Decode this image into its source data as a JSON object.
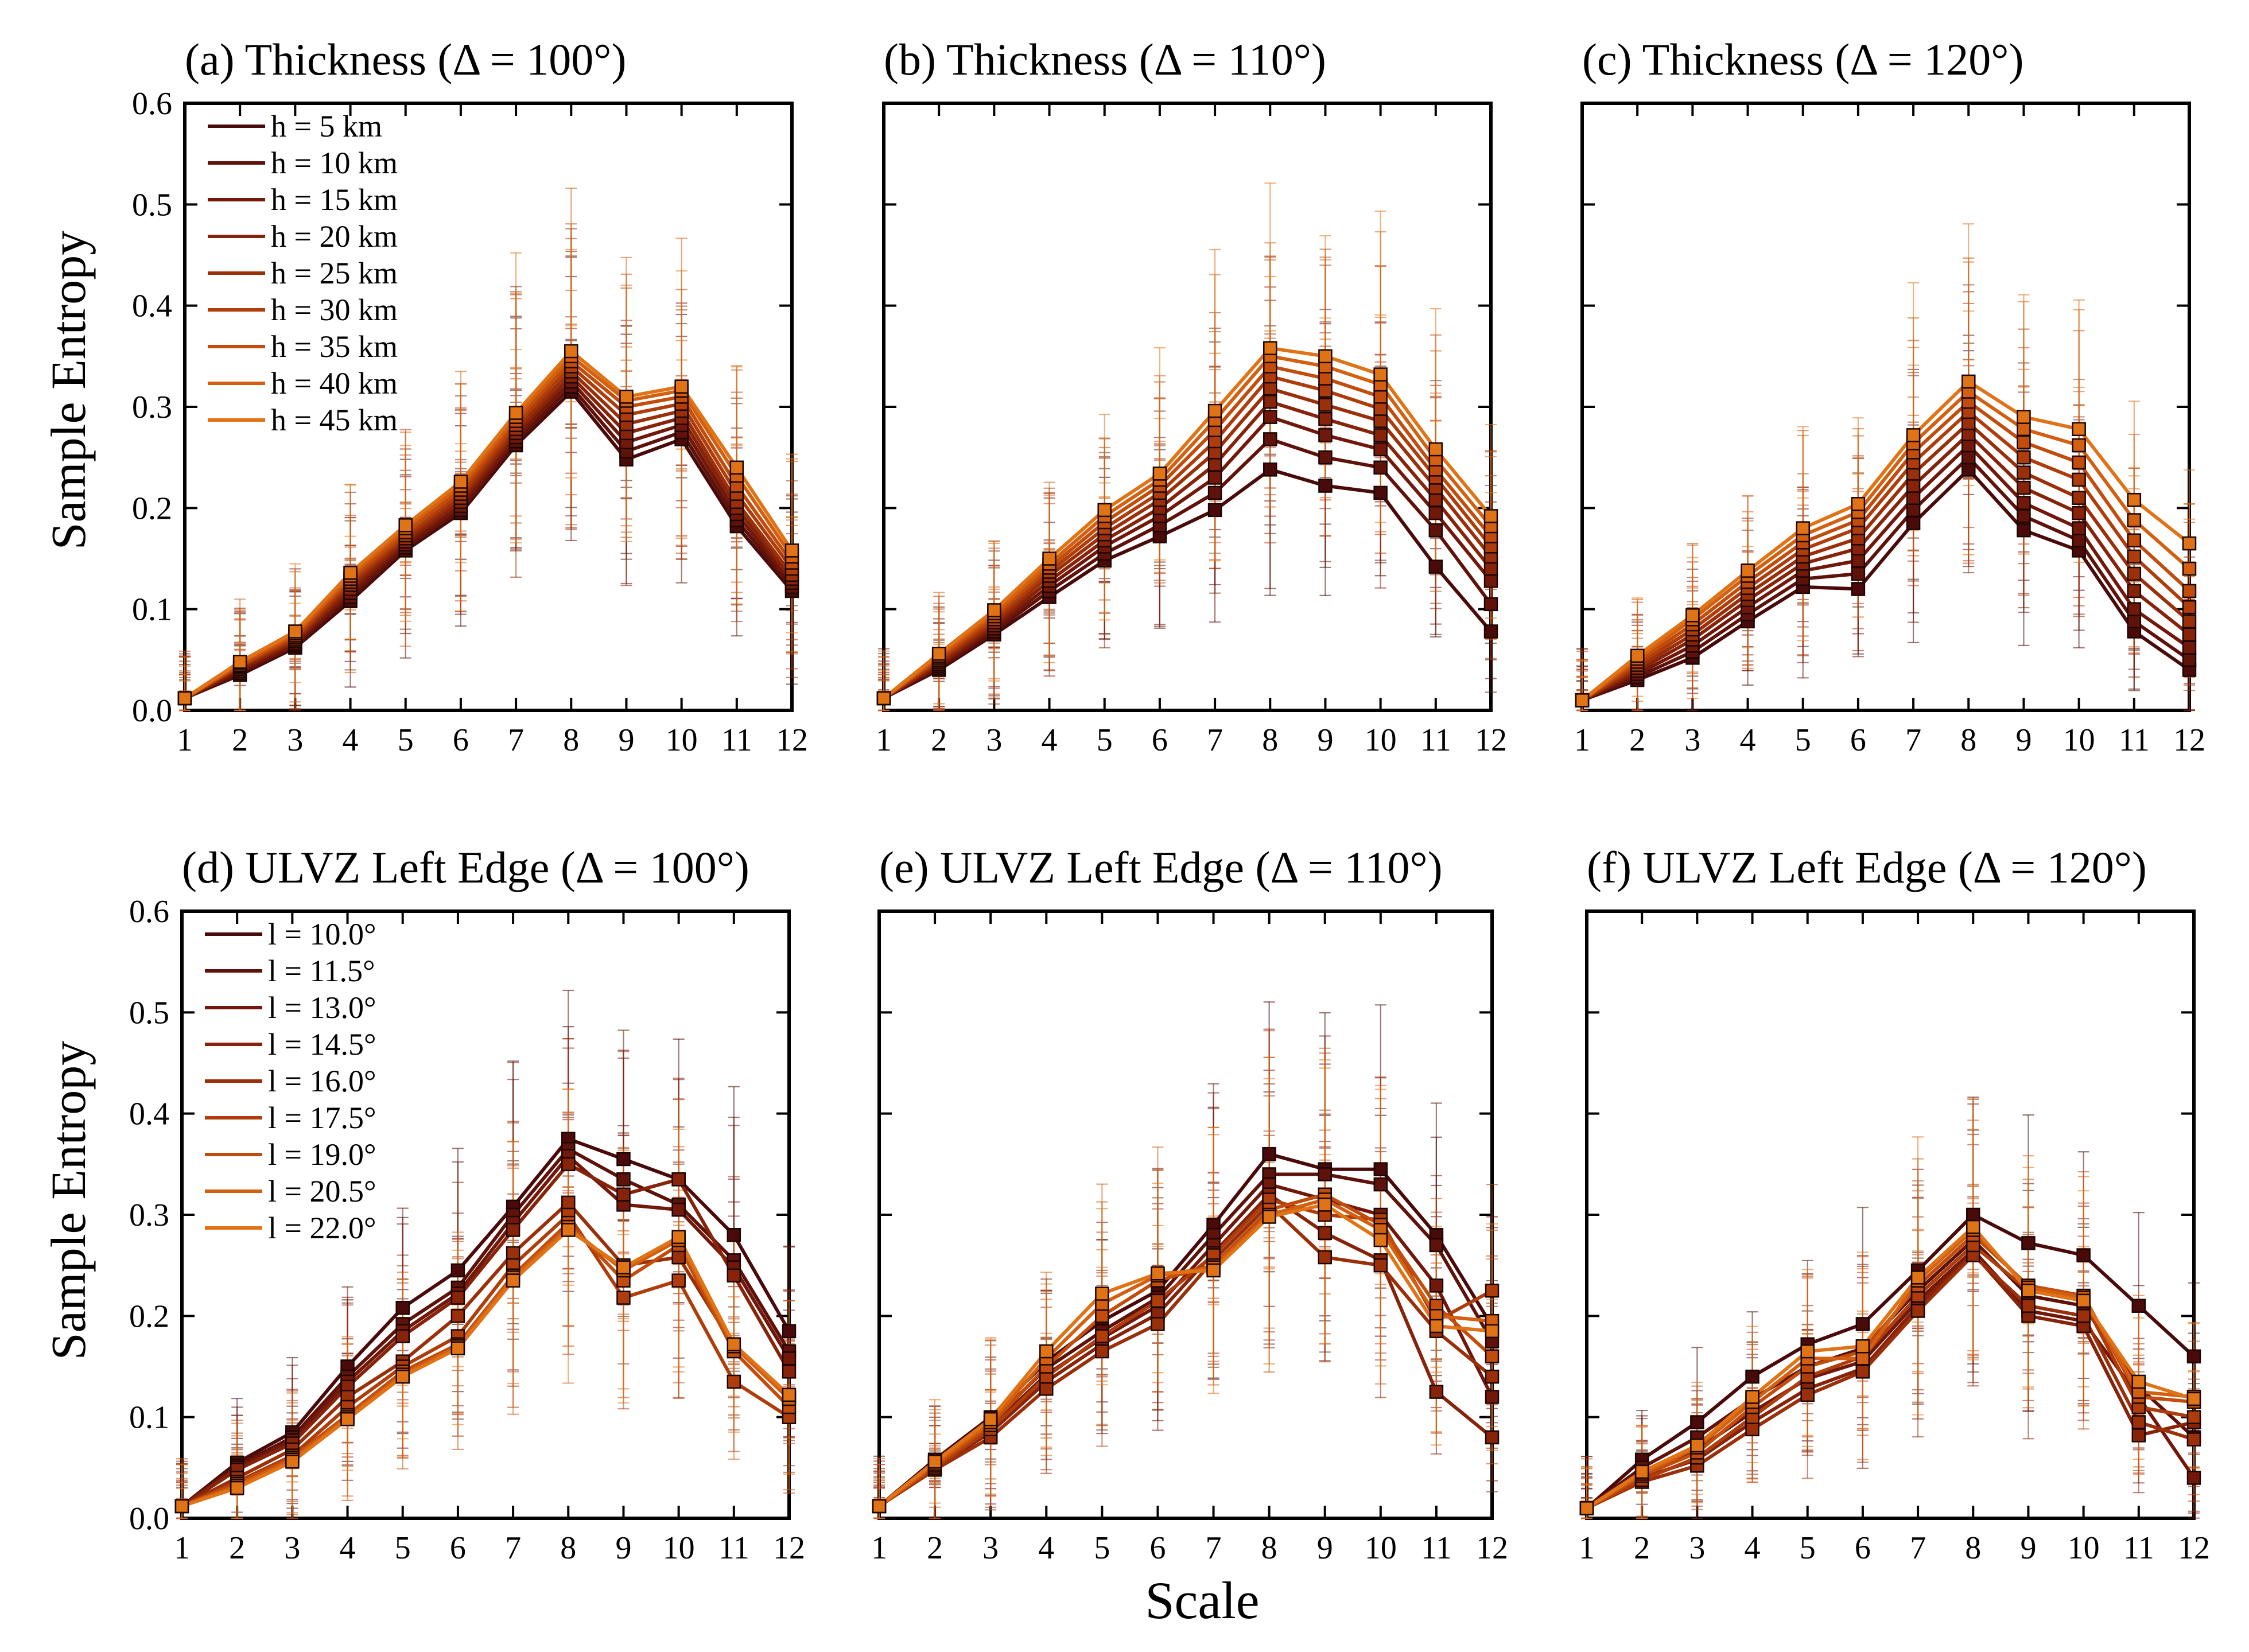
{
  "figure": {
    "ylabel": "Sample Entropy",
    "xlabel": "Scale"
  },
  "chart_data": [
    {
      "type": "line",
      "title": "(a) Thickness (Δ = 100°)",
      "x": [
        1,
        2,
        3,
        4,
        5,
        6,
        7,
        8,
        9,
        10,
        11,
        12
      ],
      "ylim": [
        0,
        0.6
      ],
      "yticks": [
        "0.0",
        "0.1",
        "0.2",
        "0.3",
        "0.4",
        "0.5",
        "0.6"
      ],
      "legend_position": "top-left",
      "series": [
        {
          "name": "h = 5 km",
          "color": "#4a0a0a",
          "values": [
            0.012,
            0.035,
            0.062,
            0.108,
            0.158,
            0.195,
            0.262,
            0.315,
            0.248,
            0.268,
            0.182,
            0.118
          ]
        },
        {
          "name": "h = 10 km",
          "color": "#5e1209",
          "values": [
            0.012,
            0.037,
            0.064,
            0.112,
            0.161,
            0.198,
            0.266,
            0.32,
            0.256,
            0.275,
            0.188,
            0.122
          ]
        },
        {
          "name": "h = 15 km",
          "color": "#72180b",
          "values": [
            0.012,
            0.039,
            0.066,
            0.116,
            0.164,
            0.202,
            0.27,
            0.325,
            0.265,
            0.282,
            0.194,
            0.126
          ]
        },
        {
          "name": "h = 20 km",
          "color": "#862309",
          "values": [
            0.012,
            0.041,
            0.068,
            0.12,
            0.167,
            0.206,
            0.274,
            0.33,
            0.274,
            0.289,
            0.2,
            0.13
          ]
        },
        {
          "name": "h = 25 km",
          "color": "#9a300a",
          "values": [
            0.012,
            0.043,
            0.07,
            0.124,
            0.17,
            0.21,
            0.278,
            0.335,
            0.283,
            0.296,
            0.206,
            0.134
          ]
        },
        {
          "name": "h = 30 km",
          "color": "#ae3d0b",
          "values": [
            0.012,
            0.044,
            0.072,
            0.127,
            0.173,
            0.214,
            0.282,
            0.34,
            0.292,
            0.303,
            0.214,
            0.14
          ]
        },
        {
          "name": "h = 35 km",
          "color": "#c24c0c",
          "values": [
            0.012,
            0.045,
            0.074,
            0.13,
            0.176,
            0.218,
            0.286,
            0.345,
            0.3,
            0.31,
            0.222,
            0.146
          ]
        },
        {
          "name": "h = 40 km",
          "color": "#d35f10",
          "values": [
            0.012,
            0.047,
            0.076,
            0.133,
            0.18,
            0.222,
            0.29,
            0.35,
            0.306,
            0.316,
            0.232,
            0.152
          ]
        },
        {
          "name": "h = 45 km",
          "color": "#e07316",
          "values": [
            0.012,
            0.048,
            0.078,
            0.136,
            0.183,
            0.226,
            0.294,
            0.355,
            0.31,
            0.32,
            0.24,
            0.158
          ]
        }
      ]
    },
    {
      "type": "line",
      "title": "(b) Thickness (Δ = 110°)",
      "x": [
        1,
        2,
        3,
        4,
        5,
        6,
        7,
        8,
        9,
        10,
        11,
        12
      ],
      "ylim": [
        0,
        0.6
      ],
      "yticks": [],
      "series": [
        {
          "color": "#4a0a0a",
          "values": [
            0.012,
            0.04,
            0.075,
            0.112,
            0.148,
            0.172,
            0.198,
            0.238,
            0.222,
            0.215,
            0.142,
            0.078
          ]
        },
        {
          "color": "#5e1209",
          "values": [
            0.012,
            0.042,
            0.078,
            0.118,
            0.155,
            0.183,
            0.215,
            0.268,
            0.25,
            0.24,
            0.178,
            0.105
          ]
        },
        {
          "color": "#72180b",
          "values": [
            0.012,
            0.044,
            0.081,
            0.123,
            0.162,
            0.192,
            0.23,
            0.29,
            0.272,
            0.258,
            0.195,
            0.128
          ]
        },
        {
          "color": "#862309",
          "values": [
            0.012,
            0.046,
            0.084,
            0.128,
            0.168,
            0.2,
            0.243,
            0.305,
            0.288,
            0.272,
            0.208,
            0.14
          ]
        },
        {
          "color": "#9a300a",
          "values": [
            0.012,
            0.048,
            0.087,
            0.133,
            0.174,
            0.208,
            0.255,
            0.318,
            0.302,
            0.286,
            0.22,
            0.152
          ]
        },
        {
          "color": "#ae3d0b",
          "values": [
            0.012,
            0.05,
            0.09,
            0.137,
            0.18,
            0.215,
            0.266,
            0.33,
            0.316,
            0.298,
            0.23,
            0.162
          ]
        },
        {
          "color": "#c24c0c",
          "values": [
            0.012,
            0.052,
            0.093,
            0.141,
            0.186,
            0.222,
            0.277,
            0.34,
            0.328,
            0.31,
            0.238,
            0.172
          ]
        },
        {
          "color": "#d35f10",
          "values": [
            0.012,
            0.054,
            0.096,
            0.145,
            0.192,
            0.228,
            0.287,
            0.35,
            0.34,
            0.322,
            0.248,
            0.182
          ]
        },
        {
          "color": "#e07316",
          "values": [
            0.012,
            0.056,
            0.099,
            0.15,
            0.198,
            0.234,
            0.296,
            0.358,
            0.35,
            0.332,
            0.258,
            0.192
          ]
        }
      ]
    },
    {
      "type": "line",
      "title": "(c) Thickness (Δ = 120°)",
      "x": [
        1,
        2,
        3,
        4,
        5,
        6,
        7,
        8,
        9,
        10,
        11,
        12
      ],
      "ylim": [
        0,
        0.6
      ],
      "yticks": [],
      "series": [
        {
          "color": "#4a0a0a",
          "values": [
            0.01,
            0.03,
            0.052,
            0.088,
            0.122,
            0.12,
            0.185,
            0.238,
            0.178,
            0.158,
            0.078,
            0.04
          ]
        },
        {
          "color": "#5e1209",
          "values": [
            0.01,
            0.033,
            0.058,
            0.095,
            0.13,
            0.135,
            0.198,
            0.25,
            0.192,
            0.168,
            0.088,
            0.05
          ]
        },
        {
          "color": "#72180b",
          "values": [
            0.01,
            0.036,
            0.064,
            0.102,
            0.138,
            0.148,
            0.21,
            0.262,
            0.205,
            0.18,
            0.1,
            0.062
          ]
        },
        {
          "color": "#862309",
          "values": [
            0.01,
            0.039,
            0.07,
            0.109,
            0.145,
            0.16,
            0.222,
            0.273,
            0.22,
            0.195,
            0.118,
            0.075
          ]
        },
        {
          "color": "#9a300a",
          "values": [
            0.01,
            0.042,
            0.075,
            0.115,
            0.152,
            0.17,
            0.234,
            0.284,
            0.235,
            0.21,
            0.135,
            0.088
          ]
        },
        {
          "color": "#ae3d0b",
          "values": [
            0.01,
            0.045,
            0.08,
            0.121,
            0.159,
            0.18,
            0.245,
            0.295,
            0.25,
            0.228,
            0.152,
            0.102
          ]
        },
        {
          "color": "#c24c0c",
          "values": [
            0.01,
            0.048,
            0.085,
            0.127,
            0.166,
            0.188,
            0.255,
            0.305,
            0.265,
            0.245,
            0.168,
            0.118
          ]
        },
        {
          "color": "#d35f10",
          "values": [
            0.01,
            0.051,
            0.09,
            0.133,
            0.173,
            0.196,
            0.264,
            0.315,
            0.278,
            0.262,
            0.188,
            0.14
          ]
        },
        {
          "color": "#e07316",
          "values": [
            0.01,
            0.054,
            0.094,
            0.138,
            0.18,
            0.204,
            0.272,
            0.325,
            0.29,
            0.278,
            0.208,
            0.165
          ]
        }
      ]
    },
    {
      "type": "line",
      "title": "(d) ULVZ Left Edge (Δ = 100°)",
      "x": [
        1,
        2,
        3,
        4,
        5,
        6,
        7,
        8,
        9,
        10,
        11,
        12
      ],
      "ylim": [
        0,
        0.6
      ],
      "yticks": [
        "0.0",
        "0.1",
        "0.2",
        "0.3",
        "0.4",
        "0.5",
        "0.6"
      ],
      "legend_position": "top-left",
      "series": [
        {
          "name": "l = 10.0°",
          "color": "#4a0a0a",
          "values": [
            0.012,
            0.055,
            0.085,
            0.15,
            0.208,
            0.245,
            0.308,
            0.375,
            0.355,
            0.335,
            0.28,
            0.185
          ]
        },
        {
          "name": "l = 11.5°",
          "color": "#5e1209",
          "values": [
            0.012,
            0.052,
            0.08,
            0.14,
            0.192,
            0.228,
            0.3,
            0.365,
            0.335,
            0.31,
            0.255,
            0.165
          ]
        },
        {
          "name": "l = 13.0°",
          "color": "#72180b",
          "values": [
            0.012,
            0.05,
            0.077,
            0.135,
            0.185,
            0.222,
            0.292,
            0.358,
            0.31,
            0.305,
            0.248,
            0.158
          ]
        },
        {
          "name": "l = 14.5°",
          "color": "#862309",
          "values": [
            0.012,
            0.048,
            0.074,
            0.13,
            0.18,
            0.218,
            0.285,
            0.35,
            0.32,
            0.335,
            0.24,
            0.145
          ]
        },
        {
          "name": "l = 16.0°",
          "color": "#9a300a",
          "values": [
            0.012,
            0.04,
            0.068,
            0.12,
            0.155,
            0.2,
            0.262,
            0.312,
            0.25,
            0.258,
            0.17,
            0.12
          ]
        },
        {
          "name": "l = 17.5°",
          "color": "#ae3d0b",
          "values": [
            0.012,
            0.036,
            0.062,
            0.11,
            0.15,
            0.18,
            0.25,
            0.3,
            0.218,
            0.235,
            0.135,
            0.1
          ]
        },
        {
          "name": "l = 19.0°",
          "color": "#c24c0c",
          "values": [
            0.012,
            0.034,
            0.06,
            0.102,
            0.145,
            0.172,
            0.24,
            0.292,
            0.235,
            0.27,
            0.165,
            0.11
          ]
        },
        {
          "name": "l = 20.5°",
          "color": "#d35f10",
          "values": [
            0.012,
            0.032,
            0.058,
            0.1,
            0.142,
            0.17,
            0.238,
            0.288,
            0.245,
            0.275,
            0.17,
            0.118
          ]
        },
        {
          "name": "l = 22.0°",
          "color": "#e07316",
          "values": [
            0.012,
            0.03,
            0.056,
            0.098,
            0.14,
            0.168,
            0.235,
            0.285,
            0.248,
            0.278,
            0.172,
            0.122
          ]
        }
      ]
    },
    {
      "type": "line",
      "title": "(e) ULVZ Left Edge (Δ = 110°)",
      "x": [
        1,
        2,
        3,
        4,
        5,
        6,
        7,
        8,
        9,
        10,
        11,
        12
      ],
      "ylim": [
        0,
        0.6
      ],
      "yticks": [],
      "series": [
        {
          "color": "#4a0a0a",
          "values": [
            0.012,
            0.058,
            0.1,
            0.155,
            0.195,
            0.225,
            0.29,
            0.36,
            0.345,
            0.345,
            0.28,
            0.19
          ]
        },
        {
          "color": "#5e1209",
          "values": [
            0.012,
            0.055,
            0.095,
            0.148,
            0.185,
            0.218,
            0.28,
            0.34,
            0.34,
            0.33,
            0.27,
            0.175
          ]
        },
        {
          "color": "#72180b",
          "values": [
            0.012,
            0.052,
            0.09,
            0.142,
            0.178,
            0.21,
            0.27,
            0.33,
            0.315,
            0.3,
            0.23,
            0.12
          ]
        },
        {
          "color": "#862309",
          "values": [
            0.012,
            0.05,
            0.085,
            0.135,
            0.172,
            0.202,
            0.262,
            0.32,
            0.282,
            0.255,
            0.125,
            0.08
          ]
        },
        {
          "color": "#9a300a",
          "values": [
            0.012,
            0.048,
            0.08,
            0.128,
            0.165,
            0.192,
            0.255,
            0.31,
            0.258,
            0.25,
            0.185,
            0.14
          ]
        },
        {
          "color": "#ae3d0b",
          "values": [
            0.012,
            0.05,
            0.088,
            0.14,
            0.18,
            0.215,
            0.26,
            0.315,
            0.3,
            0.295,
            0.195,
            0.225
          ]
        },
        {
          "color": "#c24c0c",
          "values": [
            0.012,
            0.052,
            0.092,
            0.15,
            0.2,
            0.235,
            0.25,
            0.305,
            0.32,
            0.29,
            0.21,
            0.16
          ]
        },
        {
          "color": "#d35f10",
          "values": [
            0.012,
            0.054,
            0.095,
            0.158,
            0.212,
            0.24,
            0.248,
            0.3,
            0.315,
            0.285,
            0.2,
            0.195
          ]
        },
        {
          "color": "#e07316",
          "values": [
            0.012,
            0.056,
            0.098,
            0.165,
            0.222,
            0.242,
            0.245,
            0.298,
            0.31,
            0.275,
            0.19,
            0.185
          ]
        }
      ]
    },
    {
      "type": "line",
      "title": "(f) ULVZ Left Edge (Δ = 120°)",
      "x": [
        1,
        2,
        3,
        4,
        5,
        6,
        7,
        8,
        9,
        10,
        11,
        12
      ],
      "ylim": [
        0,
        0.6
      ],
      "yticks": [],
      "series": [
        {
          "color": "#4a0a0a",
          "values": [
            0.01,
            0.058,
            0.095,
            0.14,
            0.172,
            0.192,
            0.245,
            0.3,
            0.272,
            0.26,
            0.21,
            0.16
          ]
        },
        {
          "color": "#5e1209",
          "values": [
            0.01,
            0.05,
            0.08,
            0.118,
            0.15,
            0.168,
            0.225,
            0.275,
            0.22,
            0.21,
            0.13,
            0.08
          ]
        },
        {
          "color": "#72180b",
          "values": [
            0.01,
            0.045,
            0.068,
            0.105,
            0.138,
            0.155,
            0.215,
            0.265,
            0.205,
            0.195,
            0.12,
            0.04
          ]
        },
        {
          "color": "#862309",
          "values": [
            0.01,
            0.04,
            0.058,
            0.095,
            0.128,
            0.148,
            0.21,
            0.262,
            0.2,
            0.19,
            0.082,
            0.095
          ]
        },
        {
          "color": "#9a300a",
          "values": [
            0.01,
            0.036,
            0.052,
            0.088,
            0.122,
            0.145,
            0.205,
            0.26,
            0.21,
            0.2,
            0.095,
            0.078
          ]
        },
        {
          "color": "#ae3d0b",
          "values": [
            0.01,
            0.038,
            0.06,
            0.1,
            0.14,
            0.16,
            0.22,
            0.27,
            0.225,
            0.215,
            0.11,
            0.1
          ]
        },
        {
          "color": "#c24c0c",
          "values": [
            0.01,
            0.042,
            0.065,
            0.11,
            0.15,
            0.165,
            0.23,
            0.28,
            0.23,
            0.22,
            0.12,
            0.115
          ]
        },
        {
          "color": "#d35f10",
          "values": [
            0.01,
            0.044,
            0.07,
            0.115,
            0.158,
            0.158,
            0.235,
            0.285,
            0.228,
            0.218,
            0.125,
            0.12
          ]
        },
        {
          "color": "#e07316",
          "values": [
            0.01,
            0.046,
            0.072,
            0.12,
            0.165,
            0.17,
            0.238,
            0.288,
            0.225,
            0.215,
            0.135,
            0.118
          ]
        }
      ]
    }
  ]
}
